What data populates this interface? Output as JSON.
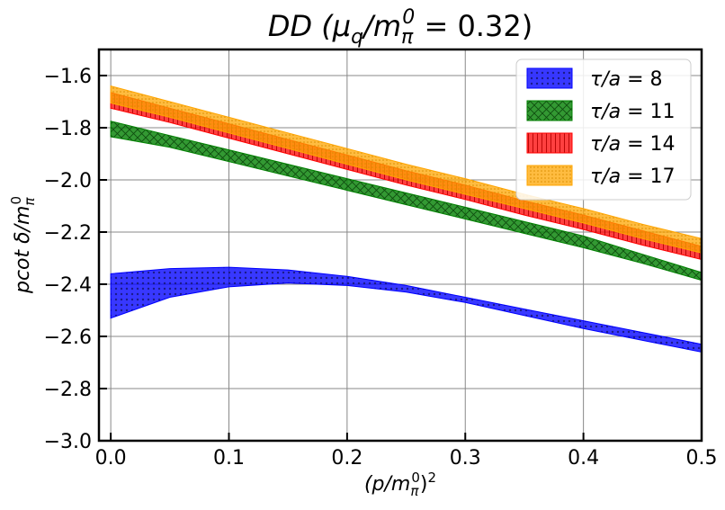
{
  "chart_data": {
    "type": "area",
    "title": "DD (μ_q/m_π^0 = 0.32)",
    "title_parts": {
      "main": "DD (",
      "mu": "μ",
      "mu_sub": "q",
      "slash": "/m",
      "m_sub": "π",
      "m_sup": "0",
      "rest": " = 0.32)"
    },
    "xlabel": "(p/m_π^0)^2",
    "xlabel_parts": {
      "open": "(p/m",
      "sub": "π",
      "sup": "0",
      "close": ")",
      "pow": "2"
    },
    "ylabel": "pcot δ/m_π^0",
    "ylabel_parts": {
      "main": "pcot δ/m",
      "sub": "π",
      "sup": "0"
    },
    "xlim": [
      -0.01,
      0.5
    ],
    "ylim": [
      -3.0,
      -1.5
    ],
    "grid": true,
    "legend_position": "top-right",
    "x_ticks": [
      0.0,
      0.1,
      0.2,
      0.3,
      0.4,
      0.5
    ],
    "x_tick_labels": [
      "0.0",
      "0.1",
      "0.2",
      "0.3",
      "0.4",
      "0.5"
    ],
    "y_ticks": [
      -3.0,
      -2.8,
      -2.6,
      -2.4,
      -2.2,
      -2.0,
      -1.8,
      -1.6
    ],
    "y_tick_labels": [
      "−3.0",
      "−2.8",
      "−2.6",
      "−2.4",
      "−2.2",
      "−2.0",
      "−1.8",
      "−1.6"
    ],
    "x": [
      0.0,
      0.05,
      0.1,
      0.15,
      0.2,
      0.25,
      0.3,
      0.35,
      0.4,
      0.45,
      0.5
    ],
    "series": [
      {
        "name": "τ/a = 8",
        "label_parts": {
          "sym": "τ/a",
          "val": " = 8"
        },
        "color": "#0000ff",
        "hatch": "dots",
        "upper": [
          -2.36,
          -2.34,
          -2.335,
          -2.345,
          -2.37,
          -2.405,
          -2.45,
          -2.495,
          -2.54,
          -2.585,
          -2.63
        ],
        "lower": [
          -2.53,
          -2.45,
          -2.41,
          -2.395,
          -2.405,
          -2.43,
          -2.47,
          -2.52,
          -2.57,
          -2.615,
          -2.66
        ]
      },
      {
        "name": "τ/a = 11",
        "label_parts": {
          "sym": "τ/a",
          "val": " = 11"
        },
        "color": "#008000",
        "hatch": "crosshatch",
        "upper": [
          -1.775,
          -1.83,
          -1.885,
          -1.94,
          -1.995,
          -2.05,
          -2.105,
          -2.16,
          -2.215,
          -2.285,
          -2.355
        ],
        "lower": [
          -1.835,
          -1.875,
          -1.93,
          -1.985,
          -2.04,
          -2.095,
          -2.15,
          -2.205,
          -2.26,
          -2.32,
          -2.385
        ]
      },
      {
        "name": "τ/a = 14",
        "label_parts": {
          "sym": "τ/a",
          "val": " = 14"
        },
        "color": "#ff0000",
        "hatch": "vertical",
        "upper": [
          -1.665,
          -1.725,
          -1.785,
          -1.845,
          -1.905,
          -1.965,
          -2.02,
          -2.08,
          -2.135,
          -2.195,
          -2.255
        ],
        "lower": [
          -1.725,
          -1.78,
          -1.84,
          -1.9,
          -1.96,
          -2.02,
          -2.075,
          -2.135,
          -2.19,
          -2.25,
          -2.305
        ]
      },
      {
        "name": "τ/a = 17",
        "label_parts": {
          "sym": "τ/a",
          "val": " = 17"
        },
        "color": "#ffa500",
        "hatch": "smalldots",
        "upper": [
          -1.64,
          -1.7,
          -1.76,
          -1.82,
          -1.88,
          -1.94,
          -1.995,
          -2.055,
          -2.11,
          -2.17,
          -2.225
        ],
        "lower": [
          -1.705,
          -1.76,
          -1.82,
          -1.88,
          -1.94,
          -2.0,
          -2.055,
          -2.11,
          -2.165,
          -2.225,
          -2.28
        ]
      }
    ]
  }
}
